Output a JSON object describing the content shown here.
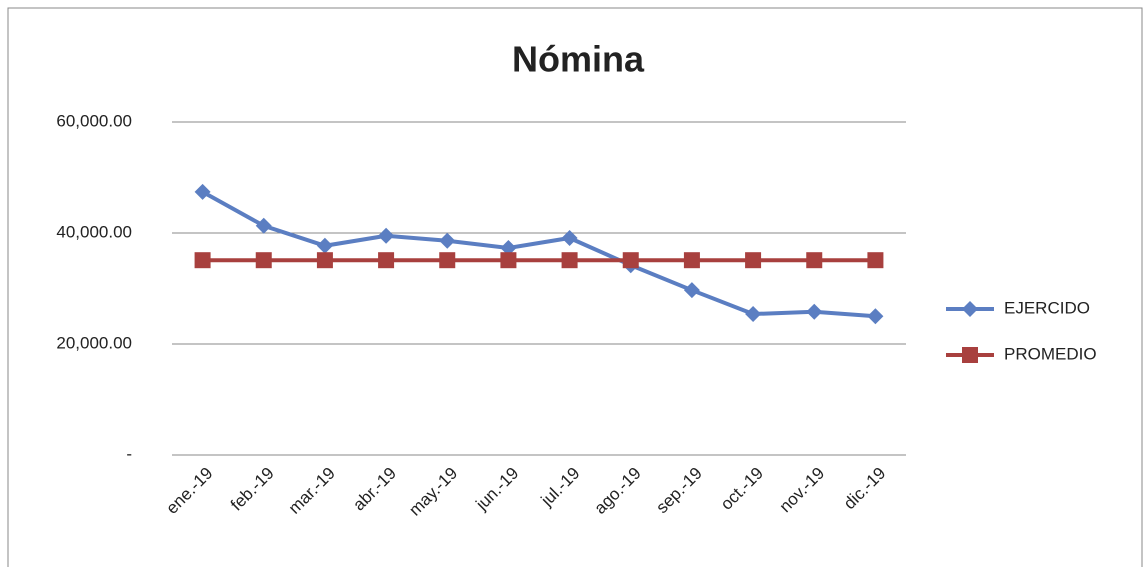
{
  "chart_data": {
    "type": "line",
    "title": "Nómina",
    "categories": [
      "ene.-19",
      "feb.-19",
      "mar.-19",
      "abr.-19",
      "may.-19",
      "jun.-19",
      "jul.-19",
      "ago.-19",
      "sep.-19",
      "oct.-19",
      "nov.-19",
      "dic.-19"
    ],
    "series": [
      {
        "name": "EJERCIDO",
        "color": "#5b7ec2",
        "marker": "diamond",
        "values": [
          47400,
          41300,
          37700,
          39500,
          38600,
          37300,
          39100,
          34200,
          29700,
          25400,
          25800,
          25000
        ]
      },
      {
        "name": "PROMEDIO",
        "color": "#a8403e",
        "marker": "square",
        "values": [
          35100,
          35100,
          35100,
          35100,
          35100,
          35100,
          35100,
          35100,
          35100,
          35100,
          35100,
          35100
        ]
      }
    ],
    "ylim": [
      0,
      60000
    ],
    "yticks": [
      {
        "value": 0,
        "label": "-"
      },
      {
        "value": 20000,
        "label": "20,000.00"
      },
      {
        "value": 40000,
        "label": "40,000.00"
      },
      {
        "value": 60000,
        "label": "60,000.00"
      }
    ],
    "grid": true,
    "legend": "right"
  }
}
